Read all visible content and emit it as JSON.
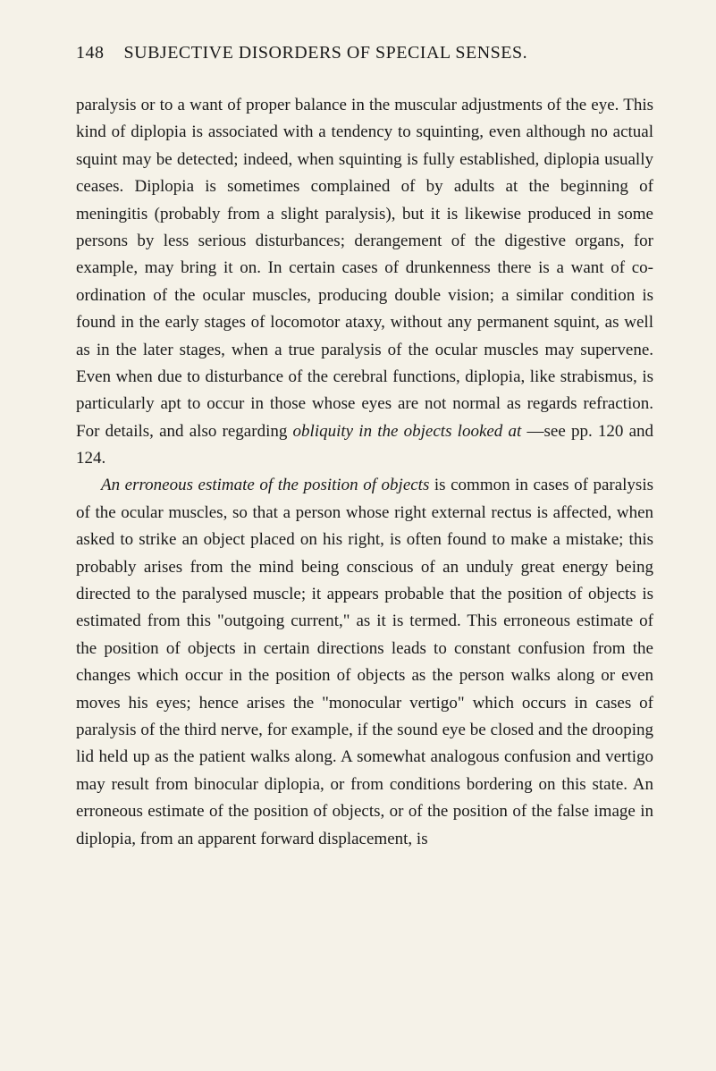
{
  "page_number": "148",
  "header_title": "SUBJECTIVE DISORDERS OF SPECIAL SENSES.",
  "paragraph1": "paralysis or to a want of proper balance in the muscular adjustments of the eye. This kind of diplopia is associated with a tendency to squinting, even although no actual squint may be detected; indeed, when squinting is fully established, diplopia usually ceases. Diplopia is sometimes complained of by adults at the beginning of meningitis (probably from a slight paralysis), but it is likewise produced in some persons by less serious disturbances; derangement of the digestive organs, for example, may bring it on. In certain cases of drunkenness there is a want of co-ordination of the ocular muscles, producing double vision; a similar condition is found in the early stages of locomotor ataxy, without any permanent squint, as well as in the later stages, when a true paralysis of the ocular muscles may supervene. Even when due to disturbance of the cerebral functions, diplopia, like strabismus, is particularly apt to occur in those whose eyes are not normal as regards refraction. For details, and also regarding ",
  "italic1": "obliquity in the objects looked at",
  "paragraph1_end": " —see pp. 120 and 124.",
  "italic2": "An erroneous estimate of the position of objects",
  "paragraph2": " is common in cases of paralysis of the ocular muscles, so that a person whose right external rectus is affected, when asked to strike an object placed on his right, is often found to make a mistake; this probably arises from the mind being conscious of an unduly great energy being directed to the paralysed muscle; it appears probable that the position of objects is estimated from this \"outgoing current,\" as it is termed. This erroneous estimate of the position of objects in certain directions leads to constant confusion from the changes which occur in the position of objects as the person walks along or even moves his eyes; hence arises the \"monocular vertigo\" which occurs in cases of paralysis of the third nerve, for example, if the sound eye be closed and the drooping lid held up as the patient walks along. A somewhat analogous confusion and vertigo may result from binocular diplopia, or from conditions bordering on this state. An erroneous estimate of the position of objects, or of the position of the false image in diplopia, from an apparent forward displacement, is",
  "colors": {
    "background": "#f5f2e8",
    "text": "#1a1a1a"
  },
  "typography": {
    "body_fontsize": 19,
    "header_fontsize": 20,
    "line_height": 1.6,
    "font_family": "Georgia, Times New Roman, serif"
  }
}
